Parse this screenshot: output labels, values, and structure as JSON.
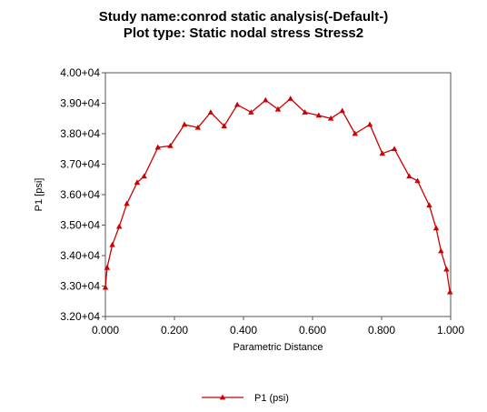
{
  "chart_data": {
    "type": "line",
    "title": "Study name:conrod static analysis(-Default-)",
    "subtitle": "Plot type: Static nodal stress Stress2",
    "xlabel": "Parametric Distance",
    "ylabel": "P1 [psi]",
    "xlim": [
      0,
      1
    ],
    "ylim": [
      32000,
      40000
    ],
    "x_ticks": [
      0,
      0.2,
      0.4,
      0.6,
      0.8,
      1.0
    ],
    "x_tick_labels": [
      "0.000",
      "0.200",
      "0.400",
      "0.600",
      "0.800",
      "1.000"
    ],
    "y_ticks": [
      32000,
      33000,
      34000,
      35000,
      36000,
      37000,
      38000,
      39000,
      40000
    ],
    "y_tick_labels": [
      "3.20+04",
      "3.30+04",
      "3.40+04",
      "3.50+04",
      "3.60+04",
      "3.70+04",
      "3.80+04",
      "3.90+04",
      "4.00+04"
    ],
    "grid": false,
    "legend_position": "bottom-center",
    "series": [
      {
        "name": "P1 (psi)",
        "color": "#cc0000",
        "marker": "triangle",
        "x": [
          0.0,
          0.005,
          0.02,
          0.04,
          0.062,
          0.092,
          0.112,
          0.152,
          0.188,
          0.229,
          0.268,
          0.305,
          0.344,
          0.382,
          0.422,
          0.464,
          0.5,
          0.536,
          0.578,
          0.618,
          0.653,
          0.686,
          0.723,
          0.766,
          0.802,
          0.837,
          0.88,
          0.904,
          0.938,
          0.958,
          0.972,
          0.988,
          0.998
        ],
        "y": [
          32950,
          33600,
          34350,
          34950,
          35700,
          36400,
          36600,
          37550,
          37600,
          38300,
          38200,
          38700,
          38250,
          38950,
          38700,
          39100,
          38800,
          39150,
          38700,
          38600,
          38500,
          38750,
          38000,
          38300,
          37350,
          37500,
          36600,
          36450,
          35650,
          34900,
          34150,
          33550,
          32800
        ]
      }
    ]
  }
}
